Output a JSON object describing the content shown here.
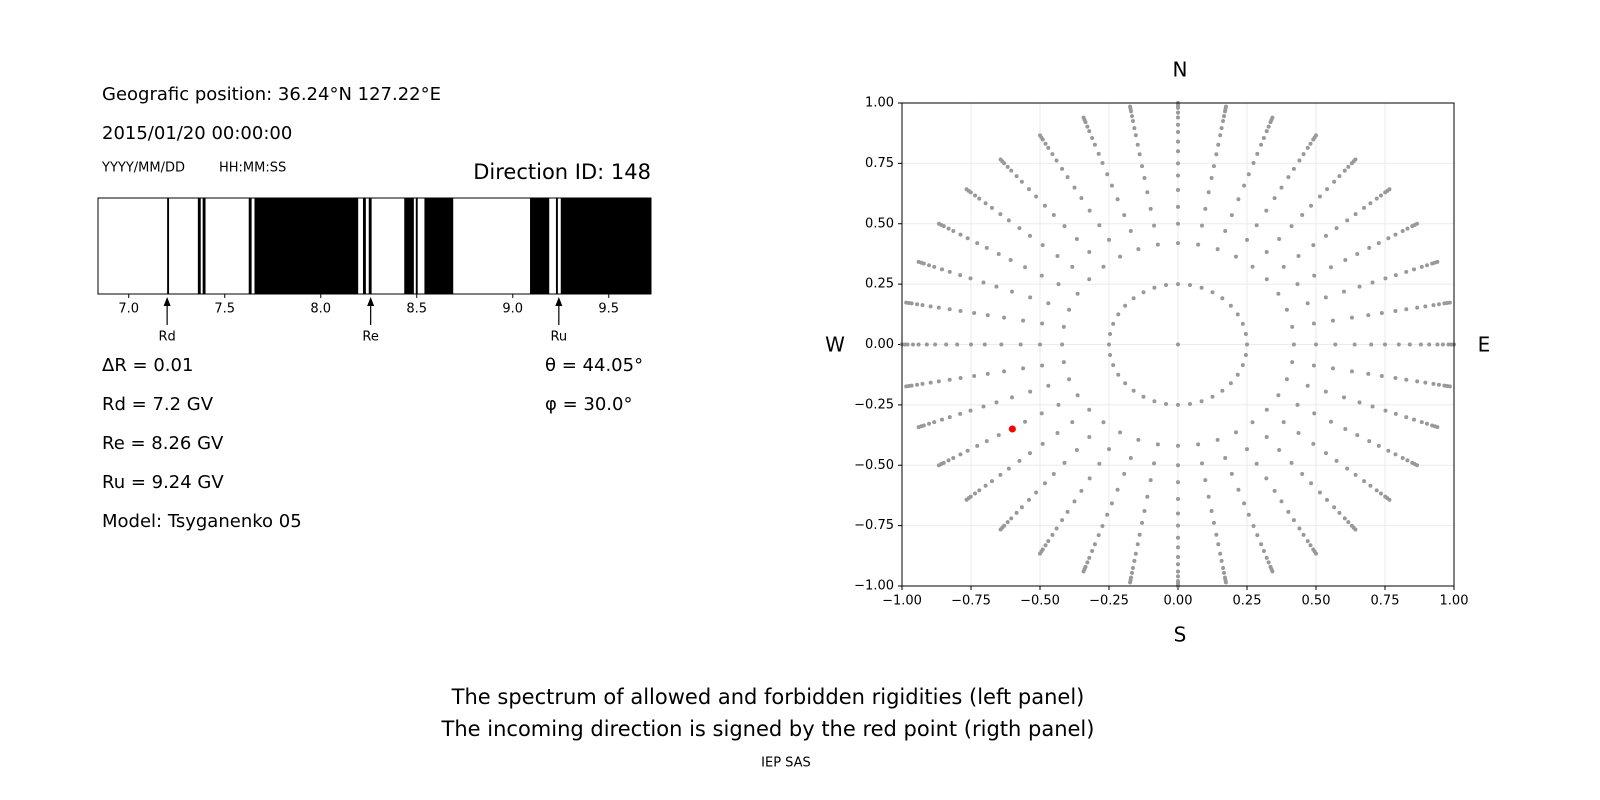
{
  "info": {
    "position": "Geografic position: 36.24°N 127.22°E",
    "datetime": "2015/01/20 00:00:00",
    "date_format": "YYYY/MM/DD",
    "time_format": "HH:MM:SS",
    "direction_id": "Direction ID: 148",
    "delta_r": "ΔR = 0.01",
    "theta": "θ = 44.05°",
    "phi": "φ = 30.0°",
    "rd": "Rd = 7.2 GV",
    "re": "Re = 8.26 GV",
    "ru": "Ru = 9.24 GV",
    "model": "Model: Tsyganenko 05"
  },
  "chart_data": [
    {
      "type": "spectrum",
      "xlim": [
        6.84,
        9.72
      ],
      "xticks": [
        {
          "value": 7,
          "label": "7.0"
        },
        7.5,
        {
          "value": 8,
          "label": "8.0"
        },
        8.5,
        {
          "value": 9,
          "label": "9.0"
        },
        9.5
      ],
      "forbidden": [
        [
          7.2,
          7.21
        ],
        [
          7.36,
          7.375
        ],
        [
          7.385,
          7.4
        ],
        [
          7.625,
          7.64
        ],
        [
          7.655,
          8.195
        ],
        [
          8.22,
          8.235
        ],
        [
          8.25,
          8.265
        ],
        [
          8.435,
          8.485
        ],
        [
          8.495,
          8.505
        ],
        [
          8.54,
          8.69
        ],
        [
          9.09,
          9.19
        ],
        [
          9.225,
          9.235
        ],
        [
          9.25,
          9.72
        ]
      ],
      "color": "#000000",
      "markers": [
        {
          "label": "Rd",
          "value": 7.2
        },
        {
          "label": "Re",
          "value": 8.26
        },
        {
          "label": "Ru",
          "value": 9.24
        }
      ]
    },
    {
      "type": "scatter",
      "xlim": [
        -1,
        1
      ],
      "ylim": [
        -1,
        1
      ],
      "xticks": [
        {
          "value": -1,
          "label": "−1.00"
        },
        {
          "value": -0.75,
          "label": "−0.75"
        },
        {
          "value": -0.5,
          "label": "−0.50"
        },
        {
          "value": -0.25,
          "label": "−0.25"
        },
        {
          "value": 0,
          "label": "0.00"
        },
        {
          "value": 0.25,
          "label": "0.25"
        },
        {
          "value": 0.5,
          "label": "0.50"
        },
        {
          "value": 0.75,
          "label": "0.75"
        },
        {
          "value": 1,
          "label": "1.00"
        }
      ],
      "yticks": [
        {
          "value": -1,
          "label": "−1.00"
        },
        {
          "value": -0.75,
          "label": "−0.75"
        },
        {
          "value": -0.5,
          "label": "−0.50"
        },
        {
          "value": -0.25,
          "label": "−0.25"
        },
        {
          "value": 0,
          "label": "0.00"
        },
        {
          "value": 0.25,
          "label": "0.25"
        },
        {
          "value": 0.5,
          "label": "0.50"
        },
        {
          "value": 0.75,
          "label": "0.75"
        },
        {
          "value": 1,
          "label": "1.00"
        }
      ],
      "grid": true,
      "directions": {
        "azimuths": [
          0,
          10,
          20,
          30,
          40,
          50,
          60,
          70,
          80,
          90,
          100,
          110,
          120,
          130,
          140,
          150,
          160,
          170,
          180,
          190,
          200,
          210,
          220,
          230,
          240,
          250,
          260,
          270,
          280,
          290,
          300,
          310,
          320,
          330,
          340,
          350
        ],
        "radii": [
          0.42,
          0.5,
          0.57,
          0.64,
          0.7,
          0.75,
          0.8,
          0.84,
          0.88,
          0.91,
          0.94,
          0.96,
          0.98,
          0.99,
          1.0
        ],
        "inner_radius": 0.25,
        "color": "#999999"
      },
      "center": {
        "x": 0,
        "y": 0
      },
      "point": {
        "x": -0.6,
        "y": -0.35,
        "color": "#ff0000"
      },
      "compass": {
        "north": "N",
        "south": "S",
        "east": "E",
        "west": "W"
      }
    }
  ],
  "caption": {
    "line1": "The spectrum of allowed and forbidden rigidities (left panel)",
    "line2": "The incoming direction is signed by the red point (rigth panel)",
    "credit": "IEP SAS"
  }
}
